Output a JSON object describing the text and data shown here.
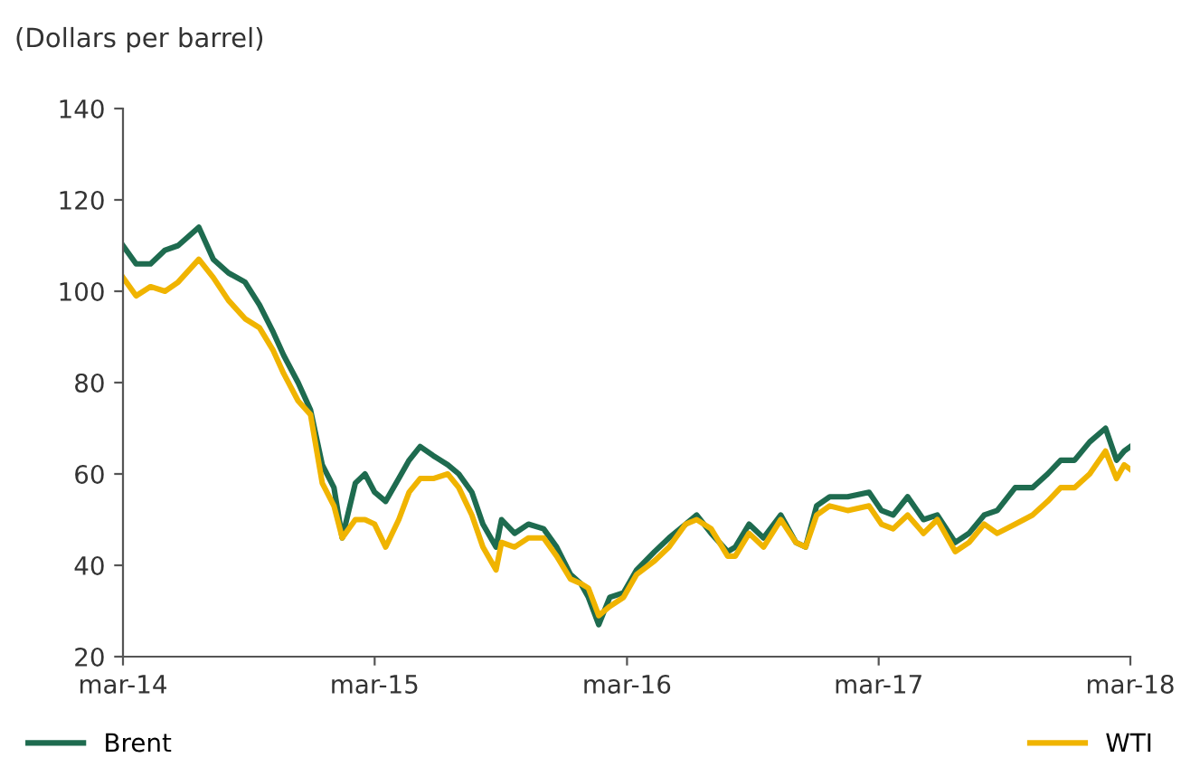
{
  "chart_data": {
    "type": "line",
    "ylabel": "(Dollars per barrel)",
    "x": [
      "2014-03-01",
      "2014-03-20",
      "2014-04-10",
      "2014-05-01",
      "2014-05-20",
      "2014-06-19",
      "2014-07-10",
      "2014-08-01",
      "2014-08-25",
      "2014-09-15",
      "2014-10-05",
      "2014-10-20",
      "2014-11-10",
      "2014-11-28",
      "2014-12-15",
      "2015-01-01",
      "2015-01-13",
      "2015-02-01",
      "2015-02-15",
      "2015-03-01",
      "2015-03-17",
      "2015-04-05",
      "2015-04-20",
      "2015-05-06",
      "2015-05-25",
      "2015-06-15",
      "2015-07-01",
      "2015-07-20",
      "2015-08-05",
      "2015-08-24",
      "2015-09-01",
      "2015-09-20",
      "2015-10-10",
      "2015-11-01",
      "2015-11-20",
      "2015-12-10",
      "2015-12-25",
      "2016-01-05",
      "2016-01-20",
      "2016-02-05",
      "2016-02-25",
      "2016-03-15",
      "2016-04-10",
      "2016-05-01",
      "2016-05-25",
      "2016-06-10",
      "2016-07-01",
      "2016-07-25",
      "2016-08-05",
      "2016-08-25",
      "2016-09-15",
      "2016-10-10",
      "2016-11-01",
      "2016-11-15",
      "2016-12-01",
      "2016-12-20",
      "2017-01-15",
      "2017-02-15",
      "2017-03-05",
      "2017-03-22",
      "2017-04-12",
      "2017-05-05",
      "2017-05-25",
      "2017-06-20",
      "2017-07-10",
      "2017-08-01",
      "2017-08-20",
      "2017-09-15",
      "2017-10-10",
      "2017-11-01",
      "2017-11-20",
      "2017-12-10",
      "2018-01-01",
      "2018-01-24",
      "2018-02-09",
      "2018-02-20",
      "2018-03-01"
    ],
    "series": [
      {
        "name": "Brent",
        "color": "#1e6b4f",
        "values": [
          110,
          106,
          106,
          109,
          110,
          114,
          107,
          104,
          102,
          97,
          91,
          86,
          80,
          74,
          62,
          57,
          46,
          58,
          60,
          56,
          54,
          59,
          63,
          66,
          64,
          62,
          60,
          56,
          49,
          44,
          50,
          47,
          49,
          48,
          44,
          38,
          36,
          33,
          27,
          33,
          34,
          39,
          43,
          46,
          49,
          51,
          47,
          43,
          44,
          49,
          46,
          51,
          45,
          44,
          53,
          55,
          55,
          56,
          52,
          51,
          55,
          50,
          51,
          45,
          47,
          51,
          52,
          57,
          57,
          60,
          63,
          63,
          67,
          70,
          63,
          65,
          66
        ]
      },
      {
        "name": "WTI",
        "color": "#f0b400",
        "values": [
          103,
          99,
          101,
          100,
          102,
          107,
          103,
          98,
          94,
          92,
          87,
          82,
          76,
          73,
          58,
          53,
          46,
          50,
          50,
          49,
          44,
          50,
          56,
          59,
          59,
          60,
          57,
          51,
          44,
          39,
          45,
          44,
          46,
          46,
          42,
          37,
          36,
          35,
          29,
          31,
          33,
          38,
          41,
          44,
          49,
          50,
          48,
          42,
          42,
          47,
          44,
          50,
          45,
          44,
          51,
          53,
          52,
          53,
          49,
          48,
          51,
          47,
          50,
          43,
          45,
          49,
          47,
          49,
          51,
          54,
          57,
          57,
          60,
          65,
          59,
          62,
          61
        ]
      }
    ],
    "xlim": [
      "2014-03-01",
      "2018-03-01"
    ],
    "xticks": [
      {
        "value": "2014-03-01",
        "label": "mar-14"
      },
      {
        "value": "2015-03-01",
        "label": "mar-15"
      },
      {
        "value": "2016-03-01",
        "label": "mar-16"
      },
      {
        "value": "2017-03-01",
        "label": "mar-17"
      },
      {
        "value": "2018-03-01",
        "label": "mar-18"
      }
    ],
    "ylim": [
      20,
      140
    ],
    "yticks": [
      20,
      40,
      60,
      80,
      100,
      120,
      140
    ],
    "grid": false,
    "legend": "bottom",
    "line_style": "solid",
    "marker": "none"
  }
}
